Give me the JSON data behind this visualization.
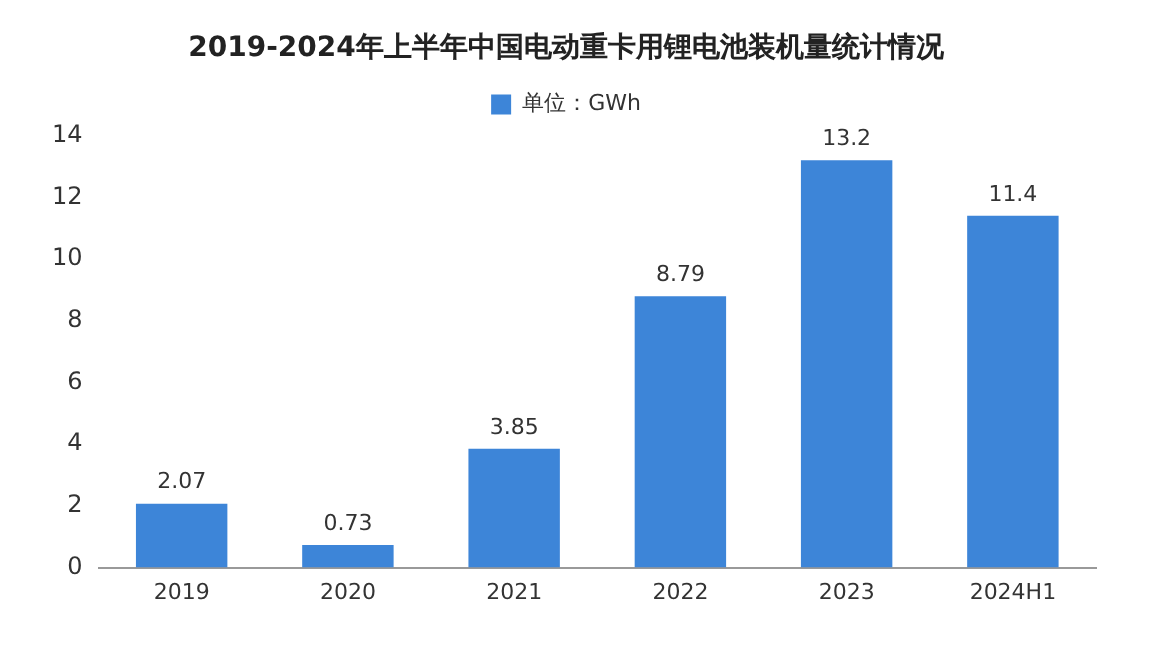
{
  "chart_data": {
    "type": "bar",
    "title": "2019-2024年上半年中国电动重卡用锂电池装机量统计情况",
    "categories": [
      "2019",
      "2020",
      "2021",
      "2022",
      "2023",
      "2024H1"
    ],
    "series": [
      {
        "name": "单位：GWh",
        "color": "#3d85d8",
        "values": [
          2.07,
          0.73,
          3.85,
          8.79,
          13.2,
          11.4
        ]
      }
    ],
    "ylim": [
      0,
      14
    ],
    "yticks": [
      0,
      2,
      4,
      6,
      8,
      10,
      12,
      14
    ],
    "grid": false,
    "legend": "top",
    "data_labels": true
  }
}
